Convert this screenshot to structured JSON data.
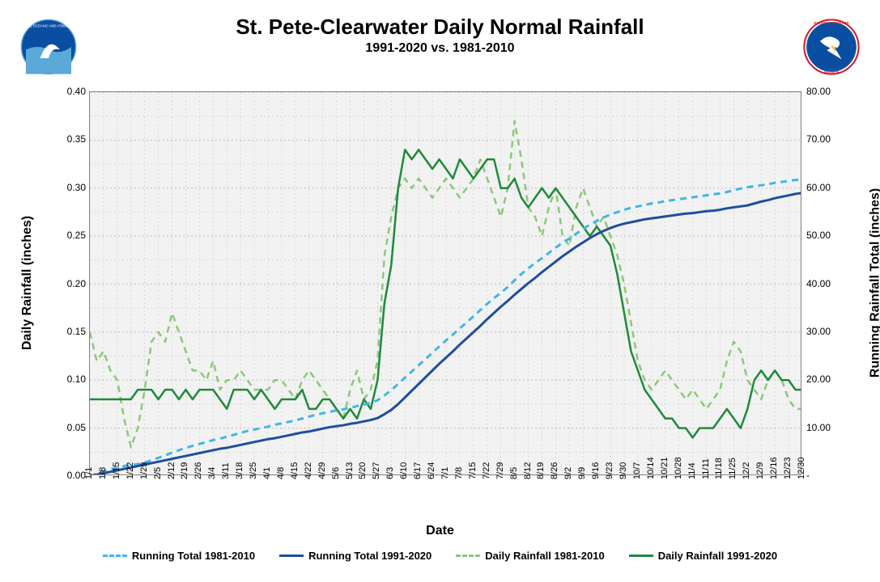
{
  "title": "St. Pete-Clearwater Daily Normal Rainfall",
  "subtitle": "1991-2020 vs. 1981-2010",
  "xlabel": "Date",
  "ylabel_left": "Daily Rainfall (inches)",
  "ylabel_right": "Running Rainfall Total (inches)",
  "plot": {
    "background": "#f2f2f2",
    "grid_color": "#bfbfbf",
    "border_color": "#808080"
  },
  "y_left": {
    "min": 0,
    "max": 0.4,
    "step": 0.05,
    "decimals": 2,
    "ticks": [
      "0.00",
      "0.05",
      "0.10",
      "0.15",
      "0.20",
      "0.25",
      "0.30",
      "0.35",
      "0.40"
    ]
  },
  "y_right": {
    "min": 0,
    "max": 80,
    "step": 10,
    "decimals": 2,
    "ticks": [
      "-",
      "10.00",
      "20.00",
      "30.00",
      "40.00",
      "50.00",
      "60.00",
      "70.00",
      "80.00"
    ]
  },
  "x": {
    "labels": [
      "1/1",
      "1/8",
      "1/15",
      "1/22",
      "1/29",
      "2/5",
      "2/12",
      "2/19",
      "2/26",
      "3/4",
      "3/11",
      "3/18",
      "3/25",
      "4/1",
      "4/8",
      "4/15",
      "4/22",
      "4/29",
      "5/6",
      "5/13",
      "5/20",
      "5/27",
      "6/3",
      "6/10",
      "6/17",
      "6/24",
      "7/1",
      "7/8",
      "7/15",
      "7/22",
      "7/29",
      "8/5",
      "8/12",
      "8/19",
      "8/26",
      "9/2",
      "9/9",
      "9/16",
      "9/23",
      "9/30",
      "10/7",
      "10/14",
      "10/21",
      "10/28",
      "11/4",
      "11/11",
      "11/18",
      "11/25",
      "12/2",
      "12/9",
      "12/16",
      "12/23",
      "12/30"
    ]
  },
  "legend": [
    {
      "label": "Running Total 1981-2010",
      "color": "#41b6e6",
      "dash": "8,6",
      "width": 3
    },
    {
      "label": "Running Total 1991-2020",
      "color": "#1f4e9c",
      "dash": "",
      "width": 3
    },
    {
      "label": "Daily Rainfall 1981-2010",
      "color": "#8bc97a",
      "dash": "8,6",
      "width": 2.5
    },
    {
      "label": "Daily Rainfall 1991-2020",
      "color": "#1f8a3b",
      "dash": "",
      "width": 2.5
    }
  ],
  "series": {
    "daily_1981_2010": {
      "axis": "left",
      "color": "#8bc97a",
      "dash": "8,6",
      "width": 2.5,
      "values": [
        0.15,
        0.12,
        0.13,
        0.11,
        0.1,
        0.06,
        0.03,
        0.05,
        0.09,
        0.14,
        0.15,
        0.14,
        0.17,
        0.15,
        0.13,
        0.11,
        0.11,
        0.1,
        0.12,
        0.09,
        0.1,
        0.1,
        0.11,
        0.1,
        0.09,
        0.09,
        0.09,
        0.1,
        0.1,
        0.09,
        0.08,
        0.1,
        0.11,
        0.1,
        0.09,
        0.08,
        0.07,
        0.06,
        0.09,
        0.11,
        0.08,
        0.09,
        0.12,
        0.23,
        0.27,
        0.3,
        0.31,
        0.3,
        0.31,
        0.3,
        0.29,
        0.3,
        0.31,
        0.3,
        0.29,
        0.3,
        0.31,
        0.33,
        0.31,
        0.29,
        0.27,
        0.3,
        0.37,
        0.33,
        0.28,
        0.27,
        0.25,
        0.28,
        0.3,
        0.25,
        0.24,
        0.28,
        0.3,
        0.28,
        0.26,
        0.27,
        0.25,
        0.23,
        0.2,
        0.16,
        0.12,
        0.1,
        0.09,
        0.1,
        0.11,
        0.1,
        0.09,
        0.08,
        0.09,
        0.08,
        0.07,
        0.08,
        0.09,
        0.12,
        0.14,
        0.13,
        0.1,
        0.09,
        0.08,
        0.1,
        0.11,
        0.1,
        0.08,
        0.07,
        0.07
      ]
    },
    "daily_1991_2020": {
      "axis": "left",
      "color": "#1f8a3b",
      "dash": "",
      "width": 2.5,
      "values": [
        0.08,
        0.08,
        0.08,
        0.08,
        0.08,
        0.08,
        0.08,
        0.09,
        0.09,
        0.09,
        0.08,
        0.09,
        0.09,
        0.08,
        0.09,
        0.08,
        0.09,
        0.09,
        0.09,
        0.08,
        0.07,
        0.09,
        0.09,
        0.09,
        0.08,
        0.09,
        0.08,
        0.07,
        0.08,
        0.08,
        0.08,
        0.09,
        0.07,
        0.07,
        0.08,
        0.08,
        0.07,
        0.06,
        0.07,
        0.06,
        0.08,
        0.07,
        0.1,
        0.18,
        0.22,
        0.3,
        0.34,
        0.33,
        0.34,
        0.33,
        0.32,
        0.33,
        0.32,
        0.31,
        0.33,
        0.32,
        0.31,
        0.32,
        0.33,
        0.33,
        0.3,
        0.3,
        0.31,
        0.29,
        0.28,
        0.29,
        0.3,
        0.29,
        0.3,
        0.29,
        0.28,
        0.27,
        0.26,
        0.25,
        0.26,
        0.25,
        0.24,
        0.21,
        0.17,
        0.13,
        0.11,
        0.09,
        0.08,
        0.07,
        0.06,
        0.06,
        0.05,
        0.05,
        0.04,
        0.05,
        0.05,
        0.05,
        0.06,
        0.07,
        0.06,
        0.05,
        0.07,
        0.1,
        0.11,
        0.1,
        0.11,
        0.1,
        0.1,
        0.09,
        0.09
      ]
    },
    "running_1981_2010": {
      "axis": "right",
      "color": "#41b6e6",
      "dash": "8,6",
      "width": 3,
      "values": [
        0,
        0.5,
        1.0,
        1.4,
        1.8,
        2.1,
        2.3,
        2.5,
        2.8,
        3.3,
        3.8,
        4.3,
        4.9,
        5.4,
        5.9,
        6.3,
        6.7,
        7.1,
        7.5,
        7.8,
        8.2,
        8.6,
        9.0,
        9.4,
        9.7,
        10.0,
        10.3,
        10.7,
        11.0,
        11.3,
        11.6,
        12.0,
        12.4,
        12.8,
        13.1,
        13.4,
        13.7,
        13.9,
        14.2,
        14.6,
        14.9,
        15.3,
        15.8,
        16.8,
        17.9,
        19.2,
        20.5,
        21.8,
        23.1,
        24.4,
        25.7,
        27.0,
        28.3,
        29.5,
        30.8,
        32.0,
        33.3,
        34.6,
        35.9,
        37.1,
        38.2,
        39.4,
        40.8,
        42.1,
        43.3,
        44.4,
        45.4,
        46.5,
        47.6,
        48.6,
        49.5,
        50.5,
        51.5,
        52.4,
        53.2,
        53.9,
        54.5,
        55.0,
        55.5,
        55.9,
        56.2,
        56.5,
        56.8,
        57.0,
        57.3,
        57.5,
        57.7,
        57.9,
        58.1,
        58.3,
        58.5,
        58.7,
        58.9,
        59.2,
        59.6,
        59.9,
        60.2,
        60.4,
        60.6,
        60.8,
        61.1,
        61.3,
        61.5,
        61.7,
        61.8
      ]
    },
    "running_1991_2020": {
      "axis": "right",
      "color": "#1f4e9c",
      "dash": "",
      "width": 3,
      "values": [
        0,
        0.3,
        0.6,
        0.9,
        1.2,
        1.5,
        1.8,
        2.1,
        2.4,
        2.7,
        3.0,
        3.3,
        3.6,
        3.9,
        4.2,
        4.5,
        4.8,
        5.1,
        5.4,
        5.7,
        5.9,
        6.2,
        6.5,
        6.8,
        7.1,
        7.4,
        7.7,
        7.9,
        8.2,
        8.5,
        8.8,
        9.1,
        9.3,
        9.6,
        9.9,
        10.2,
        10.4,
        10.6,
        10.9,
        11.1,
        11.4,
        11.7,
        12.1,
        12.9,
        13.8,
        15.0,
        16.4,
        17.8,
        19.2,
        20.6,
        22.0,
        23.4,
        24.7,
        26.0,
        27.4,
        28.7,
        30.0,
        31.3,
        32.7,
        34.0,
        35.3,
        36.5,
        37.8,
        39.0,
        40.2,
        41.3,
        42.5,
        43.6,
        44.7,
        45.8,
        46.8,
        47.8,
        48.7,
        49.6,
        50.4,
        51.1,
        51.7,
        52.2,
        52.6,
        52.9,
        53.2,
        53.5,
        53.7,
        53.9,
        54.1,
        54.3,
        54.5,
        54.7,
        54.8,
        55.0,
        55.2,
        55.3,
        55.5,
        55.8,
        56.0,
        56.2,
        56.4,
        56.8,
        57.2,
        57.5,
        57.9,
        58.2,
        58.5,
        58.8,
        59.0
      ]
    }
  },
  "logos": {
    "noaa": {
      "bg": "#0a4ea2",
      "accent": "#ffffff",
      "text": "NOAA"
    },
    "nws": {
      "ring": "#d1202c",
      "center": "#0a4ea2",
      "text": "NATIONAL WEATHER SERVICE"
    }
  }
}
